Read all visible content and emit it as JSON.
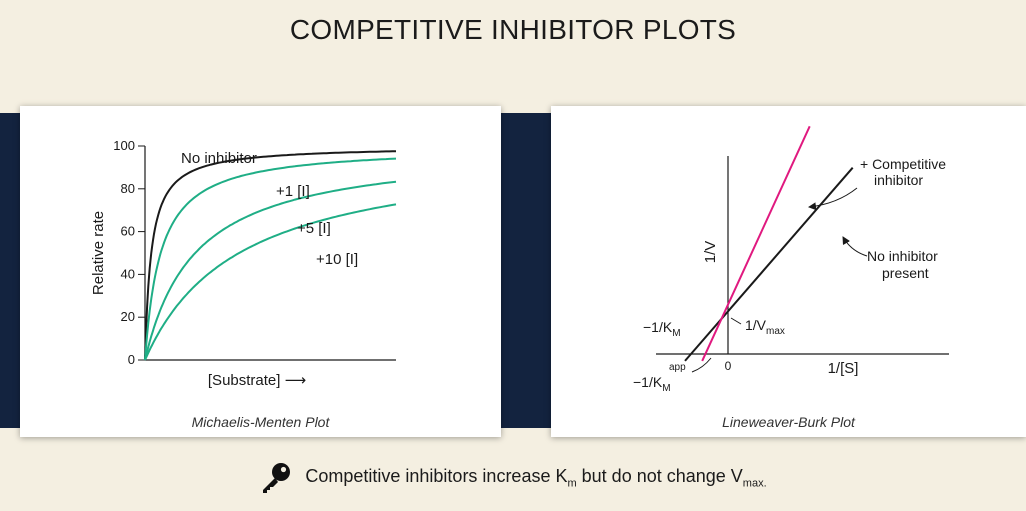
{
  "page_title": "COMPETITIVE INHIBITOR PLOTS",
  "footer": {
    "icon": "key-icon",
    "text_before_km": "Competitive inhibitors increase K",
    "km_sub": "m",
    "text_middle": " but do not change V",
    "vmax_sub": "max."
  },
  "colors": {
    "no_inhibitor": "#1a1a1a",
    "inhibitor_mm": "#1fae86",
    "inhibitor_lb": "#e0197f",
    "background": "#f4efe1",
    "band": "#13233f"
  },
  "chart_data": [
    {
      "type": "line",
      "caption": "Michaelis-Menten Plot",
      "xlabel": "[Substrate]",
      "xlabel_arrow": "⟶",
      "ylabel": "Relative rate",
      "ylim": [
        0,
        100
      ],
      "yticks": [
        "0",
        "20",
        "40",
        "60",
        "80",
        "100"
      ],
      "vmax": 100,
      "series": [
        {
          "name": "No inhibitor",
          "km": 1,
          "label_text": "No inhibitor"
        },
        {
          "name": "+1 [I]",
          "km": 2.5,
          "label_text": "+1  [I]"
        },
        {
          "name": "+5 [I]",
          "km": 8,
          "label_text": "+5 [I]"
        },
        {
          "name": "+10 [I]",
          "km": 15,
          "label_text": "+10 [I]"
        }
      ]
    },
    {
      "type": "line",
      "caption": "Lineweaver-Burk Plot",
      "xlabel": "1/[S]",
      "ylabel": "1/V",
      "origin_label": "0",
      "series": [
        {
          "name": "No inhibitor present",
          "x": [
            -1.0,
            2.9
          ],
          "y": [
            -0.05,
            1.35
          ]
        },
        {
          "name": "+ Competitive inhibitor",
          "x": [
            -0.6,
            1.9
          ],
          "y": [
            -0.05,
            1.65
          ]
        }
      ],
      "annotations": {
        "no_inhibitor_line1": "No inhibitor",
        "no_inhibitor_line2": "present",
        "competitive_line1": "+ Competitive",
        "competitive_line2": "inhibitor",
        "km_label": "−1/K",
        "km_sub": "M",
        "km_app_label": "−1/K",
        "km_app_sub": "M",
        "km_app_sup": "app",
        "vmax_label": "1/V",
        "vmax_sub": "max"
      }
    }
  ]
}
